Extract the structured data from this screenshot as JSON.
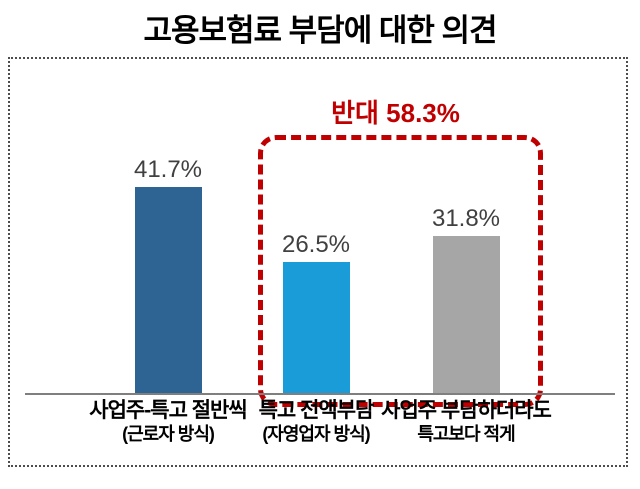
{
  "title": "고용보험료 부담에 대한 의견",
  "chart_data": {
    "type": "bar",
    "categories": [
      {
        "label": "사업주-특고 절반씩",
        "sublabel": "(근로자 방식)"
      },
      {
        "label": "특고 전액부담",
        "sublabel": "(자영업자 방식)"
      },
      {
        "label": "사업주 부담하더라도",
        "sublabel": "특고보다 적게"
      }
    ],
    "values": [
      41.7,
      26.5,
      31.8
    ],
    "value_labels": [
      "41.7%",
      "26.5%",
      "31.8%"
    ],
    "bar_colors": [
      "#2e6494",
      "#199cd8",
      "#a6a6a6"
    ],
    "value_label_color": "#404040",
    "axis_color": "#7f7f7f",
    "grid": false,
    "legend": false,
    "ylim": [
      0,
      45
    ],
    "annotation": {
      "label": "반대 58.3%",
      "value": 58.3,
      "color": "#c00000",
      "group_start_index": 1,
      "group_end_index": 2
    }
  }
}
